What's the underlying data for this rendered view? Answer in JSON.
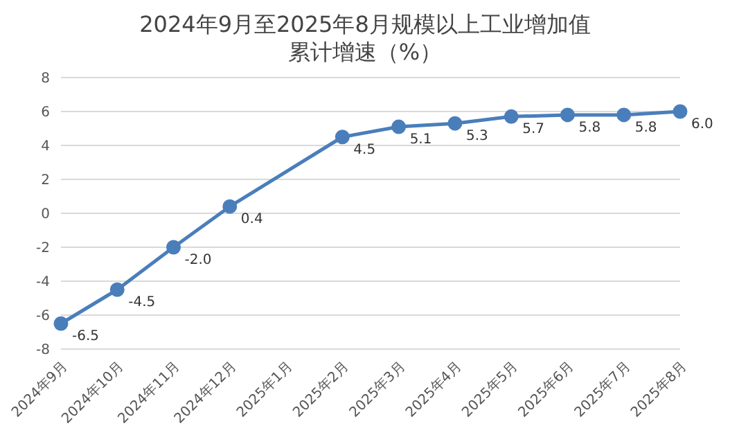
{
  "chart_data": {
    "type": "line",
    "title": "2024年9月至2025年8月规模以上工业增加值累计增速（%）",
    "categories": [
      "2024年9月",
      "2024年10月",
      "2024年11月",
      "2024年12月",
      "2025年1月",
      "2025年2月",
      "2025年3月",
      "2025年4月",
      "2025年5月",
      "2025年6月",
      "2025年7月",
      "2025年8月"
    ],
    "series": [
      {
        "color": "#4a7ebb",
        "values": [
          -6.5,
          -4.5,
          -2.0,
          0.4,
          null,
          4.5,
          5.1,
          5.3,
          5.7,
          5.8,
          5.8,
          6.0
        ],
        "value_labels": [
          "-6.5",
          "-4.5",
          "-2.0",
          "0.4",
          null,
          "4.5",
          "5.1",
          "5.3",
          "5.7",
          "5.8",
          "5.8",
          "6.0"
        ]
      }
    ],
    "ylim": [
      -8,
      8
    ],
    "yticks": [
      -8,
      -6,
      -4,
      -2,
      0,
      2,
      4,
      6,
      8
    ],
    "grid": "y",
    "marker": "circle",
    "legend": false
  }
}
